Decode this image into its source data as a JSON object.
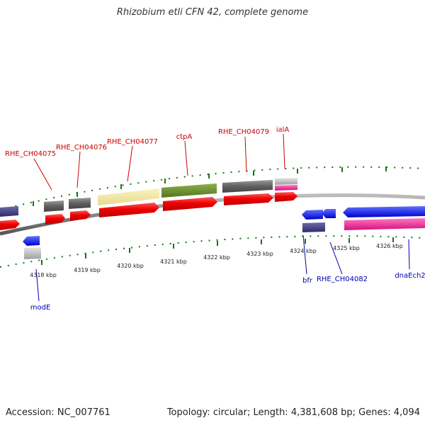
{
  "title": "Rhizobium etli CFN 42, complete genome",
  "footer": {
    "accession_label": "Accession:",
    "accession": "NC_007761",
    "topology_label": "Topology:",
    "topology": "circular",
    "length_label": "Length:",
    "length": "4,381,608 bp",
    "genes_label": "Genes:",
    "genes": "4,094"
  },
  "colors": {
    "backbone": "#8a8a8a",
    "tick": "#117711",
    "forward_label": "#cc0000",
    "reverse_label": "#0000aa"
  },
  "scale": {
    "unit": "kbp",
    "labels": [
      "4318 kbp",
      "4319 kbp",
      "4320 kbp",
      "4321 kbp",
      "4322 kbp",
      "4323 kbp",
      "4324 kbp",
      "4325 kbp",
      "4326 kbp"
    ]
  },
  "gene_labels": {
    "forward": [
      "RHE_CH04075",
      "RHE_CH04076",
      "RHE_CH04077",
      "ctpA",
      "RHE_CH04079",
      "ialA"
    ],
    "reverse": [
      "modE",
      "bfr",
      "RHE_CH04082",
      "dnaEch2"
    ]
  }
}
